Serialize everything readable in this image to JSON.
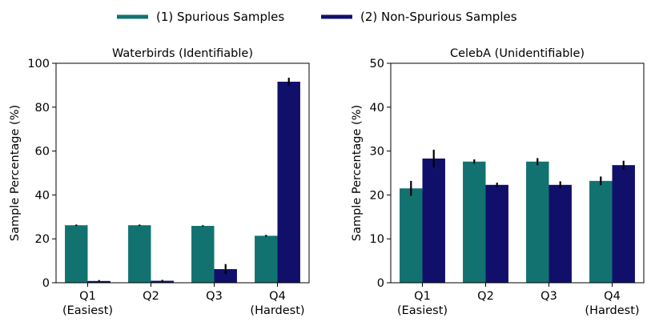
{
  "legend": {
    "items": [
      {
        "label": "(1) Spurious Samples",
        "color": "#127270"
      },
      {
        "label": "(2) Non-Spurious Samples",
        "color": "#10106b"
      }
    ]
  },
  "chart_data": [
    {
      "type": "bar",
      "title": "Waterbirds (Identifiable)",
      "xlabel": "",
      "ylabel": "Sample Percentage  (%)",
      "ylim": [
        0,
        100
      ],
      "yticks": [
        0,
        20,
        40,
        60,
        80,
        100
      ],
      "categories": [
        {
          "line1": "Q1",
          "line2": "(Easiest)"
        },
        {
          "line1": "Q2",
          "line2": ""
        },
        {
          "line1": "Q3",
          "line2": ""
        },
        {
          "line1": "Q4",
          "line2": "(Hardest)"
        }
      ],
      "series": [
        {
          "name": "(1) Spurious Samples",
          "color": "#127270",
          "values": [
            26.2,
            26.2,
            25.9,
            21.4
          ],
          "errors": [
            0.3,
            0.3,
            0.3,
            0.4
          ]
        },
        {
          "name": "(2) Non-Spurious Samples",
          "color": "#10106b",
          "values": [
            0.8,
            0.9,
            6.2,
            91.6
          ],
          "errors": [
            0.4,
            0.4,
            2.3,
            1.8
          ]
        }
      ]
    },
    {
      "type": "bar",
      "title": "CelebA (Unidentifiable)",
      "xlabel": "",
      "ylabel": "Sample Percentage  (%)",
      "ylim": [
        0,
        50
      ],
      "yticks": [
        0,
        10,
        20,
        30,
        40,
        50
      ],
      "categories": [
        {
          "line1": "Q1",
          "line2": "(Easiest)"
        },
        {
          "line1": "Q2",
          "line2": ""
        },
        {
          "line1": "Q3",
          "line2": ""
        },
        {
          "line1": "Q4",
          "line2": "(Hardest)"
        }
      ],
      "series": [
        {
          "name": "(1) Spurious Samples",
          "color": "#127270",
          "values": [
            21.5,
            27.6,
            27.6,
            23.2
          ],
          "errors": [
            1.7,
            0.5,
            0.8,
            1.0
          ]
        },
        {
          "name": "(2) Non-Spurious Samples",
          "color": "#10106b",
          "values": [
            28.3,
            22.3,
            22.3,
            26.8
          ],
          "errors": [
            2.0,
            0.5,
            0.8,
            1.0
          ]
        }
      ]
    }
  ]
}
